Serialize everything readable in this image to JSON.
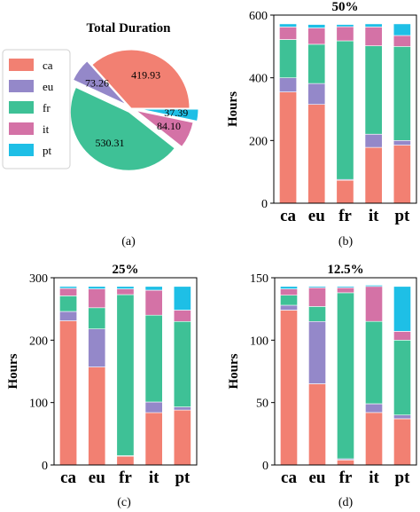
{
  "colors": {
    "ca": "#F28072",
    "eu": "#9488C9",
    "fr": "#3EC196",
    "it": "#D472A6",
    "pt": "#1EBFE6"
  },
  "chart_data": [
    {
      "type": "pie",
      "panel_label": "(a)",
      "title": "Total Duration",
      "labels": [
        "ca",
        "eu",
        "fr",
        "it",
        "pt"
      ],
      "values": [
        419.93,
        73.26,
        530.31,
        84.1,
        37.39
      ],
      "value_labels": [
        "419.93",
        "73.26",
        "530.31",
        "84.10",
        "37.39"
      ],
      "legend": [
        "ca",
        "eu",
        "fr",
        "it",
        "pt"
      ],
      "legend_position": "left"
    },
    {
      "type": "bar",
      "stacked": true,
      "panel_label": "(b)",
      "title": "50%",
      "ylabel": "Hours",
      "categories": [
        "ca",
        "eu",
        "fr",
        "it",
        "pt"
      ],
      "ylim": [
        0,
        600
      ],
      "yticks": [
        0,
        200,
        400,
        600
      ],
      "series": [
        {
          "name": "ca",
          "values": [
            355,
            315,
            73,
            178,
            185
          ]
        },
        {
          "name": "eu",
          "values": [
            45,
            67,
            3,
            42,
            15
          ]
        },
        {
          "name": "fr",
          "values": [
            122,
            125,
            442,
            282,
            300
          ]
        },
        {
          "name": "it",
          "values": [
            40,
            52,
            45,
            60,
            35
          ]
        },
        {
          "name": "pt",
          "values": [
            10,
            11,
            7,
            10,
            37
          ]
        }
      ]
    },
    {
      "type": "bar",
      "stacked": true,
      "panel_label": "(c)",
      "title": "25%",
      "ylabel": "Hours",
      "categories": [
        "ca",
        "eu",
        "fr",
        "it",
        "pt"
      ],
      "ylim": [
        0,
        300
      ],
      "yticks": [
        0,
        100,
        200,
        300
      ],
      "series": [
        {
          "name": "ca",
          "values": [
            231,
            157,
            14,
            84,
            88
          ]
        },
        {
          "name": "eu",
          "values": [
            15,
            61,
            1,
            17,
            5
          ]
        },
        {
          "name": "fr",
          "values": [
            25,
            34,
            258,
            139,
            137
          ]
        },
        {
          "name": "it",
          "values": [
            12,
            30,
            9,
            40,
            18
          ]
        },
        {
          "name": "pt",
          "values": [
            3,
            4,
            4,
            6,
            38
          ]
        }
      ]
    },
    {
      "type": "bar",
      "stacked": true,
      "panel_label": "(d)",
      "title": "12.5%",
      "ylabel": "Hours",
      "categories": [
        "ca",
        "eu",
        "fr",
        "it",
        "pt"
      ],
      "ylim": [
        0,
        150
      ],
      "yticks": [
        0,
        50,
        100,
        150
      ],
      "series": [
        {
          "name": "ca",
          "values": [
            124,
            65,
            4,
            42,
            37
          ]
        },
        {
          "name": "eu",
          "values": [
            4,
            50,
            1,
            7,
            3
          ]
        },
        {
          "name": "fr",
          "values": [
            8,
            12,
            133,
            66,
            60
          ]
        },
        {
          "name": "it",
          "values": [
            5,
            15,
            4,
            28,
            7
          ]
        },
        {
          "name": "pt",
          "values": [
            2,
            1,
            1,
            1,
            36
          ]
        }
      ]
    }
  ]
}
